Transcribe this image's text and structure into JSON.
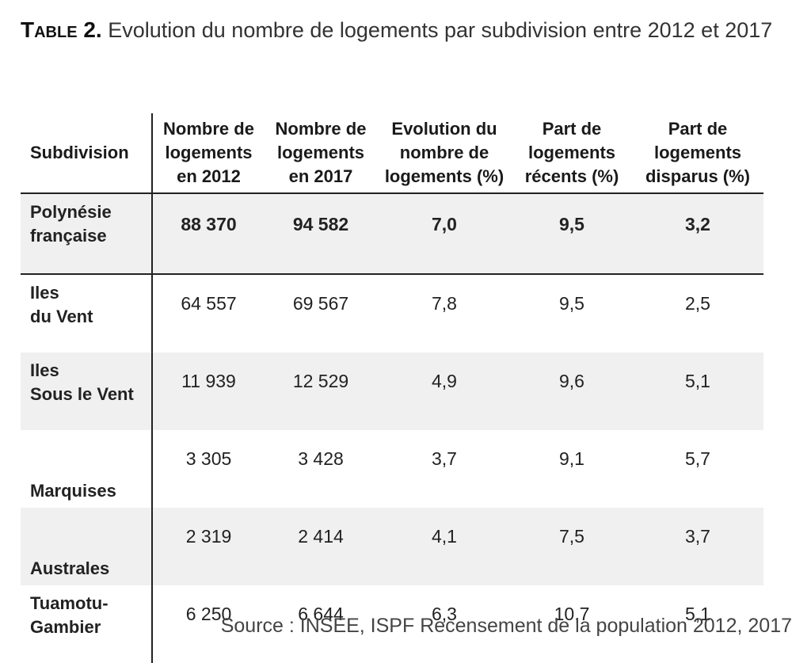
{
  "title": {
    "label": "Table 2.",
    "text": "Evolution du nombre de logements par subdivision entre 2012 et 2017"
  },
  "table": {
    "headers": [
      [
        "Subdivision"
      ],
      [
        "Nombre de",
        "logements",
        "en 2012"
      ],
      [
        "Nombre de",
        "logements",
        "en 2017"
      ],
      [
        "Evolution du",
        "nombre de",
        "logements (%)"
      ],
      [
        "Part de",
        "logements",
        "récents (%)"
      ],
      [
        "Part de",
        "logements",
        "disparus (%)"
      ]
    ],
    "rows": [
      {
        "name": [
          "Polynésie",
          "française"
        ],
        "values": [
          "88 370",
          "94 582",
          "7,0",
          "9,5",
          "3,2"
        ]
      },
      {
        "name": [
          "Iles",
          "du Vent"
        ],
        "values": [
          "64 557",
          "69 567",
          "7,8",
          "9,5",
          "2,5"
        ]
      },
      {
        "name": [
          "Iles",
          "Sous le Vent"
        ],
        "values": [
          "11 939",
          "12 529",
          "4,9",
          "9,6",
          "5,1"
        ]
      },
      {
        "name": [
          "Marquises"
        ],
        "values": [
          "3 305",
          "3 428",
          "3,7",
          "9,1",
          "5,7"
        ]
      },
      {
        "name": [
          "Australes"
        ],
        "values": [
          "2 319",
          "2 414",
          "4,1",
          "7,5",
          "3,7"
        ]
      },
      {
        "name": [
          "Tuamotu-",
          "Gambier"
        ],
        "values": [
          "6 250",
          "6 644",
          "6,3",
          "10,7",
          "5,1"
        ]
      }
    ]
  },
  "source": "Source : INSEE, ISPF Recensement de la population 2012, 2017"
}
